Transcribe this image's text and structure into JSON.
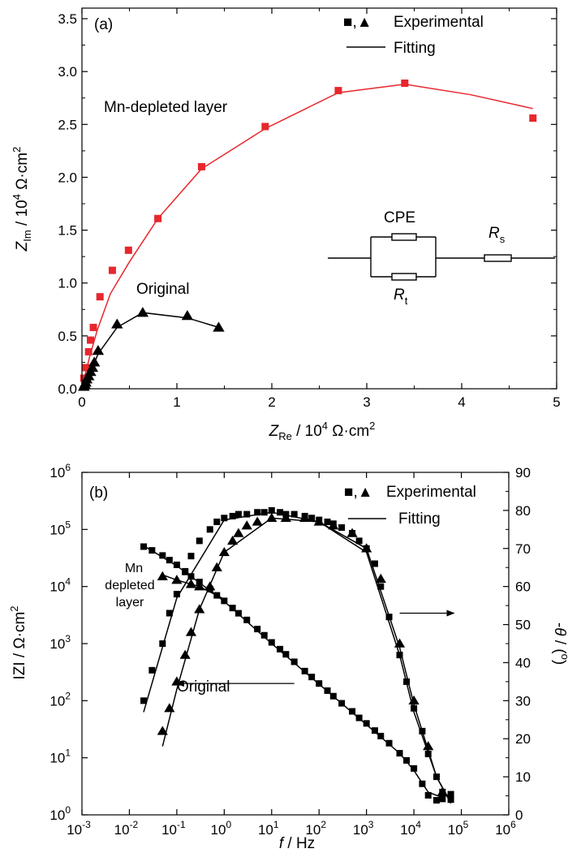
{
  "chart_data": [
    {
      "type": "scatter",
      "panel_label": "(a)",
      "xlabel": {
        "main": "Z",
        "sub": "Re",
        "unit": " / 10",
        "exp": "4",
        "unit2": " Ω·cm",
        "exp2": "2"
      },
      "ylabel": {
        "main": "Z",
        "sub": "Im",
        "unit": " / 10",
        "exp": "4",
        "unit2": " Ω·cm",
        "exp2": "2"
      },
      "xlim": [
        0,
        5
      ],
      "ylim": [
        0,
        3.6
      ],
      "x_ticks": [
        "0",
        "1",
        "2",
        "3",
        "4",
        "5"
      ],
      "y_ticks": [
        "0.0",
        "0.5",
        "1.0",
        "1.5",
        "2.0",
        "2.5",
        "3.0",
        "3.5"
      ],
      "legend": {
        "placement": "top-right",
        "markers_label": "■,▲",
        "experimental": "Experimental",
        "fitting": "Fitting"
      },
      "annotations": {
        "mn_depleted": "Mn-depleted layer",
        "original": "Original"
      },
      "circuit": {
        "cpe": "CPE",
        "rs_main": "R",
        "rs_sub": "s",
        "rt_main": "R",
        "rt_sub": "t"
      },
      "colors": {
        "mn": "#e8262d",
        "orig": "#000000"
      },
      "series": [
        {
          "name": "Mn-depleted layer",
          "marker": "square",
          "points": [
            [
              0.02,
              0.1
            ],
            [
              0.04,
              0.2
            ],
            [
              0.07,
              0.35
            ],
            [
              0.09,
              0.46
            ],
            [
              0.12,
              0.58
            ],
            [
              0.19,
              0.87
            ],
            [
              0.32,
              1.12
            ],
            [
              0.49,
              1.31
            ],
            [
              0.8,
              1.61
            ],
            [
              1.26,
              2.1
            ],
            [
              1.93,
              2.48
            ],
            [
              2.7,
              2.82
            ],
            [
              3.4,
              2.89
            ],
            [
              4.75,
              2.56
            ]
          ],
          "fit": [
            [
              0.0,
              0.02
            ],
            [
              0.03,
              0.12
            ],
            [
              0.08,
              0.3
            ],
            [
              0.16,
              0.55
            ],
            [
              0.3,
              0.9
            ],
            [
              0.5,
              1.2
            ],
            [
              0.8,
              1.61
            ],
            [
              1.26,
              2.08
            ],
            [
              1.93,
              2.46
            ],
            [
              2.7,
              2.8
            ],
            [
              3.4,
              2.88
            ],
            [
              4.1,
              2.78
            ],
            [
              4.75,
              2.65
            ]
          ]
        },
        {
          "name": "Original",
          "marker": "triangle",
          "points": [
            [
              0.02,
              0.02
            ],
            [
              0.03,
              0.04
            ],
            [
              0.04,
              0.06
            ],
            [
              0.05,
              0.09
            ],
            [
              0.07,
              0.12
            ],
            [
              0.09,
              0.16
            ],
            [
              0.11,
              0.2
            ],
            [
              0.13,
              0.25
            ],
            [
              0.17,
              0.36
            ],
            [
              0.37,
              0.61
            ],
            [
              0.64,
              0.72
            ],
            [
              1.11,
              0.69
            ],
            [
              1.44,
              0.58
            ]
          ],
          "fit": [
            [
              0.0,
              0.0
            ],
            [
              0.04,
              0.06
            ],
            [
              0.09,
              0.15
            ],
            [
              0.17,
              0.33
            ],
            [
              0.37,
              0.58
            ],
            [
              0.64,
              0.72
            ],
            [
              1.11,
              0.67
            ],
            [
              1.44,
              0.58
            ]
          ]
        }
      ]
    },
    {
      "type": "scatter",
      "panel_label": "(b)",
      "xlabel": {
        "main": "f",
        "unit": " / Hz"
      },
      "ylabel_left": {
        "text": "IZI / Ω·cm",
        "exp": "2"
      },
      "ylabel_right": {
        "text1": "-",
        "italic": "θ",
        "text2": " / (",
        "exp": "o",
        "text3": ")"
      },
      "x_log_range": [
        -3,
        6
      ],
      "y_log_range": [
        0,
        6
      ],
      "y_right_range": [
        0,
        90
      ],
      "x_tick_exps": [
        "-3",
        "-2",
        "-1",
        "0",
        "1",
        "2",
        "3",
        "4",
        "5",
        "6"
      ],
      "y_tick_exps": [
        "0",
        "1",
        "2",
        "3",
        "4",
        "5",
        "6"
      ],
      "y_right_ticks": [
        "0",
        "10",
        "20",
        "30",
        "40",
        "50",
        "60",
        "70",
        "80",
        "90"
      ],
      "tick_base": "10",
      "legend": {
        "placement": "top-right",
        "markers_label": "■,▲",
        "experimental": "Experimental",
        "fitting": "Fitting"
      },
      "annotations": {
        "mn_line1": "Mn",
        "mn_line2": "depleted",
        "mn_line3": "layer",
        "original": "Original"
      },
      "series": [
        {
          "name": "Mn depleted layer |Z|",
          "marker": "square",
          "axis": "left",
          "points": [
            [
              0.02,
              50000
            ],
            [
              0.03,
              43000
            ],
            [
              0.05,
              35000
            ],
            [
              0.07,
              29000
            ],
            [
              0.1,
              24000
            ],
            [
              0.15,
              18000
            ],
            [
              0.2,
              15000
            ],
            [
              0.3,
              12000
            ],
            [
              0.5,
              9000
            ],
            [
              0.7,
              7000
            ],
            [
              1,
              5600
            ],
            [
              1.5,
              4200
            ],
            [
              2,
              3400
            ],
            [
              3,
              2600
            ],
            [
              5,
              1800
            ],
            [
              7,
              1400
            ],
            [
              10,
              1050
            ],
            [
              15,
              800
            ],
            [
              20,
              650
            ],
            [
              30,
              480
            ],
            [
              50,
              330
            ],
            [
              70,
              260
            ],
            [
              100,
              200
            ],
            [
              150,
              150
            ],
            [
              200,
              120
            ],
            [
              300,
              90
            ],
            [
              500,
              65
            ],
            [
              700,
              50
            ],
            [
              1000,
              40
            ],
            [
              1500,
              30
            ],
            [
              2000,
              24
            ],
            [
              3000,
              18
            ],
            [
              5000,
              12
            ],
            [
              7000,
              9
            ],
            [
              10000,
              6.5
            ],
            [
              15000,
              3.5
            ],
            [
              20000,
              2.2
            ],
            [
              30000,
              1.8
            ],
            [
              40000,
              1.9
            ],
            [
              60000,
              2.3
            ]
          ],
          "fit": [
            [
              0.02,
              52000
            ],
            [
              0.1,
              23000
            ],
            [
              1,
              5500
            ],
            [
              10,
              1000
            ],
            [
              100,
              195
            ],
            [
              1000,
              38
            ],
            [
              5000,
              12
            ],
            [
              10000,
              6
            ],
            [
              20000,
              2.5
            ],
            [
              40000,
              2
            ],
            [
              60000,
              2.4
            ]
          ]
        },
        {
          "name": "Original |Z|",
          "marker": "triangle",
          "axis": "left",
          "points": [
            [
              0.05,
              15000
            ],
            [
              0.1,
              13000
            ],
            [
              0.2,
              11000
            ],
            [
              0.3,
              10000
            ]
          ],
          "fit": [
            [
              0.05,
              16000
            ],
            [
              0.1,
              13000
            ],
            [
              0.3,
              10000
            ],
            [
              1,
              6000
            ]
          ]
        },
        {
          "name": "Mn depleted layer phase",
          "marker": "square",
          "axis": "right",
          "points": [
            [
              0.02,
              30
            ],
            [
              0.03,
              38
            ],
            [
              0.05,
              45
            ],
            [
              0.07,
              53
            ],
            [
              0.1,
              58
            ],
            [
              0.15,
              64
            ],
            [
              0.2,
              68
            ],
            [
              0.3,
              72
            ],
            [
              0.5,
              75
            ],
            [
              0.7,
              77
            ],
            [
              1,
              78
            ],
            [
              1.5,
              78.5
            ],
            [
              2,
              79
            ],
            [
              3,
              79
            ],
            [
              5,
              79.5
            ],
            [
              7,
              79.5
            ],
            [
              10,
              80
            ],
            [
              15,
              79.5
            ],
            [
              20,
              79
            ],
            [
              30,
              79
            ],
            [
              50,
              78.5
            ],
            [
              70,
              78
            ],
            [
              100,
              77.5
            ],
            [
              150,
              77
            ],
            [
              200,
              76.5
            ],
            [
              300,
              75.5
            ],
            [
              500,
              74
            ],
            [
              700,
              72
            ],
            [
              1000,
              70
            ],
            [
              1500,
              66
            ],
            [
              2000,
              60
            ],
            [
              3000,
              52
            ],
            [
              5000,
              42
            ],
            [
              7000,
              35
            ],
            [
              10000,
              28
            ],
            [
              15000,
              22
            ],
            [
              20000,
              16
            ],
            [
              30000,
              10
            ],
            [
              40000,
              6
            ],
            [
              60000,
              4
            ]
          ],
          "fit": [
            [
              0.02,
              27
            ],
            [
              0.1,
              57
            ],
            [
              1,
              77.5
            ],
            [
              10,
              79.5
            ],
            [
              100,
              77
            ],
            [
              1000,
              69
            ],
            [
              5000,
              42
            ],
            [
              10000,
              27
            ],
            [
              30000,
              10
            ],
            [
              60000,
              3
            ]
          ]
        },
        {
          "name": "Original phase",
          "marker": "triangle",
          "axis": "right",
          "points": [
            [
              0.05,
              22
            ],
            [
              0.07,
              28
            ],
            [
              0.1,
              35
            ],
            [
              0.15,
              42
            ],
            [
              0.2,
              48
            ],
            [
              0.3,
              54
            ],
            [
              0.5,
              60
            ],
            [
              0.7,
              65
            ],
            [
              1,
              69
            ],
            [
              1.5,
              72
            ],
            [
              2,
              74
            ],
            [
              3,
              76
            ],
            [
              5,
              77
            ],
            [
              10,
              78
            ],
            [
              20,
              78
            ],
            [
              50,
              78
            ],
            [
              100,
              77
            ],
            [
              200,
              76
            ],
            [
              500,
              74
            ],
            [
              1000,
              70
            ],
            [
              2000,
              62
            ],
            [
              5000,
              45
            ],
            [
              10000,
              30
            ],
            [
              20000,
              18
            ],
            [
              40000,
              6
            ]
          ],
          "fit": [
            [
              0.05,
              18
            ],
            [
              0.1,
              33
            ],
            [
              0.3,
              54
            ],
            [
              1,
              69
            ],
            [
              10,
              78
            ],
            [
              100,
              77
            ],
            [
              1000,
              70
            ],
            [
              5000,
              44
            ],
            [
              10000,
              29
            ],
            [
              30000,
              10
            ],
            [
              50000,
              5
            ]
          ]
        }
      ],
      "arrows": [
        {
          "axis": "left",
          "from": [
            30,
            200
          ],
          "to": [
            0.1,
            200
          ]
        },
        {
          "axis": "right",
          "from": [
            5000,
            53
          ],
          "to": [
            70000,
            53
          ]
        }
      ]
    }
  ]
}
